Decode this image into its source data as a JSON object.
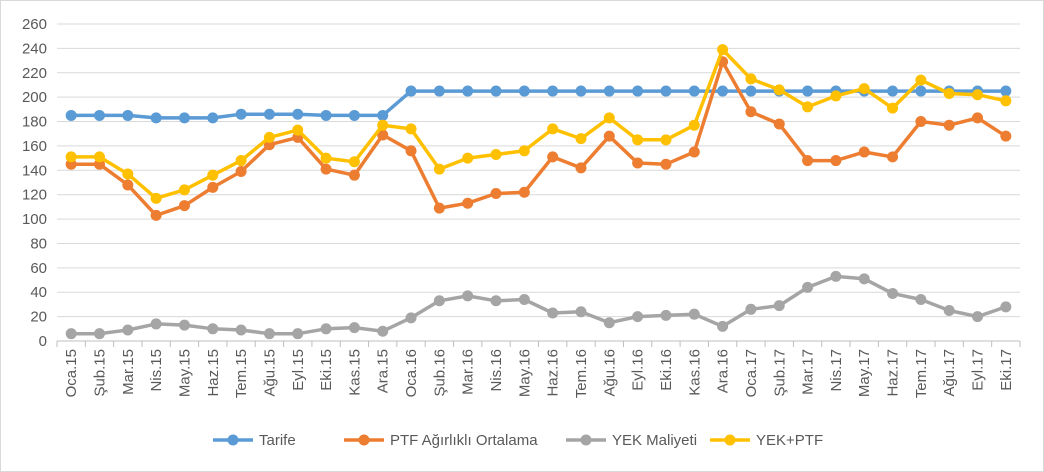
{
  "chart_data": {
    "type": "line",
    "title": "",
    "xlabel": "",
    "ylabel": "",
    "ylim": [
      0,
      260
    ],
    "y_ticks": [
      0,
      20,
      40,
      60,
      80,
      100,
      120,
      140,
      160,
      180,
      200,
      220,
      240,
      260
    ],
    "grid": "horizontal",
    "legend": "bottom",
    "categories": [
      "Oca.15",
      "Şub.15",
      "Mar.15",
      "Nis.15",
      "May.15",
      "Haz.15",
      "Tem.15",
      "Ağu.15",
      "Eyl.15",
      "Eki.15",
      "Kas.15",
      "Ara.15",
      "Oca.16",
      "Şub.16",
      "Mar.16",
      "Nis.16",
      "May.16",
      "Haz.16",
      "Tem.16",
      "Ağu.16",
      "Eyl.16",
      "Eki.16",
      "Kas.16",
      "Ara.16",
      "Oca.17",
      "Şub.17",
      "Mar.17",
      "Nis.17",
      "May.17",
      "Haz.17",
      "Tem.17",
      "Ağu.17",
      "Eyl.17",
      "Eki.17"
    ],
    "series": [
      {
        "name": "Tarife",
        "color": "#5B9BD5",
        "values": [
          185,
          185,
          185,
          183,
          183,
          183,
          186,
          186,
          186,
          185,
          185,
          185,
          205,
          205,
          205,
          205,
          205,
          205,
          205,
          205,
          205,
          205,
          205,
          205,
          205,
          205,
          205,
          205,
          205,
          205,
          205,
          205,
          205,
          205
        ]
      },
      {
        "name": "PTF Ağırlıklı Ortalama",
        "color": "#ED7D31",
        "values": [
          145,
          145,
          128,
          103,
          111,
          126,
          139,
          161,
          167,
          141,
          136,
          169,
          156,
          109,
          113,
          121,
          122,
          151,
          142,
          168,
          146,
          145,
          155,
          229,
          188,
          178,
          148,
          148,
          155,
          151,
          180,
          177,
          183,
          168
        ]
      },
      {
        "name": "YEK Maliyeti",
        "color": "#A5A5A5",
        "values": [
          6,
          6,
          9,
          14,
          13,
          10,
          9,
          6,
          6,
          10,
          11,
          8,
          19,
          33,
          37,
          33,
          34,
          23,
          24,
          15,
          20,
          21,
          22,
          12,
          26,
          29,
          44,
          53,
          51,
          39,
          34,
          25,
          20,
          28
        ]
      },
      {
        "name": "YEK+PTF",
        "color": "#FFC000",
        "values": [
          151,
          151,
          137,
          117,
          124,
          136,
          148,
          167,
          173,
          150,
          147,
          177,
          174,
          141,
          150,
          153,
          156,
          174,
          166,
          183,
          165,
          165,
          177,
          239,
          215,
          206,
          192,
          201,
          207,
          191,
          214,
          203,
          202,
          197
        ]
      }
    ]
  }
}
